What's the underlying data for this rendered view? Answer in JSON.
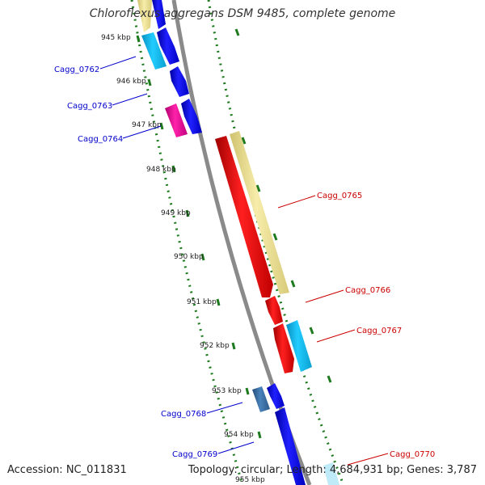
{
  "header": {
    "title": "Chloroflexus aggregans DSM 9485, complete genome"
  },
  "footer": {
    "accession": "Accession: NC_011831",
    "summary": "Topology: circular; Length: 4,684,931 bp; Genes: 3,787"
  },
  "scale": {
    "unit": "kbp",
    "ticks": [
      "945 kbp",
      "946 kbp",
      "947 kbp",
      "948 kbp",
      "949 kbp",
      "950 kbp",
      "951 kbp",
      "952 kbp",
      "953 kbp",
      "954 kbp",
      "955 kbp"
    ]
  },
  "colors": {
    "backbone": "#8a8a8a",
    "scale_dots": "#1e7a1e",
    "label_reverse": "#0000cc",
    "label_forward": "#cc0000",
    "feature_red": "#ee0000",
    "feature_blue": "#0000ee",
    "feature_cyan": "#11bbee",
    "feature_magenta": "#ee1199",
    "feature_tan": "#ede193",
    "feature_steel": "#3b6fa5"
  },
  "gene_labels": [
    {
      "name": "Cagg_0762",
      "strand": "reverse"
    },
    {
      "name": "Cagg_0763",
      "strand": "reverse"
    },
    {
      "name": "Cagg_0764",
      "strand": "reverse"
    },
    {
      "name": "Cagg_0765",
      "strand": "forward"
    },
    {
      "name": "Cagg_0766",
      "strand": "forward"
    },
    {
      "name": "Cagg_0767",
      "strand": "forward"
    },
    {
      "name": "Cagg_0768",
      "strand": "reverse"
    },
    {
      "name": "Cagg_0769",
      "strand": "reverse"
    },
    {
      "name": "Cagg_0770",
      "strand": "forward"
    }
  ]
}
